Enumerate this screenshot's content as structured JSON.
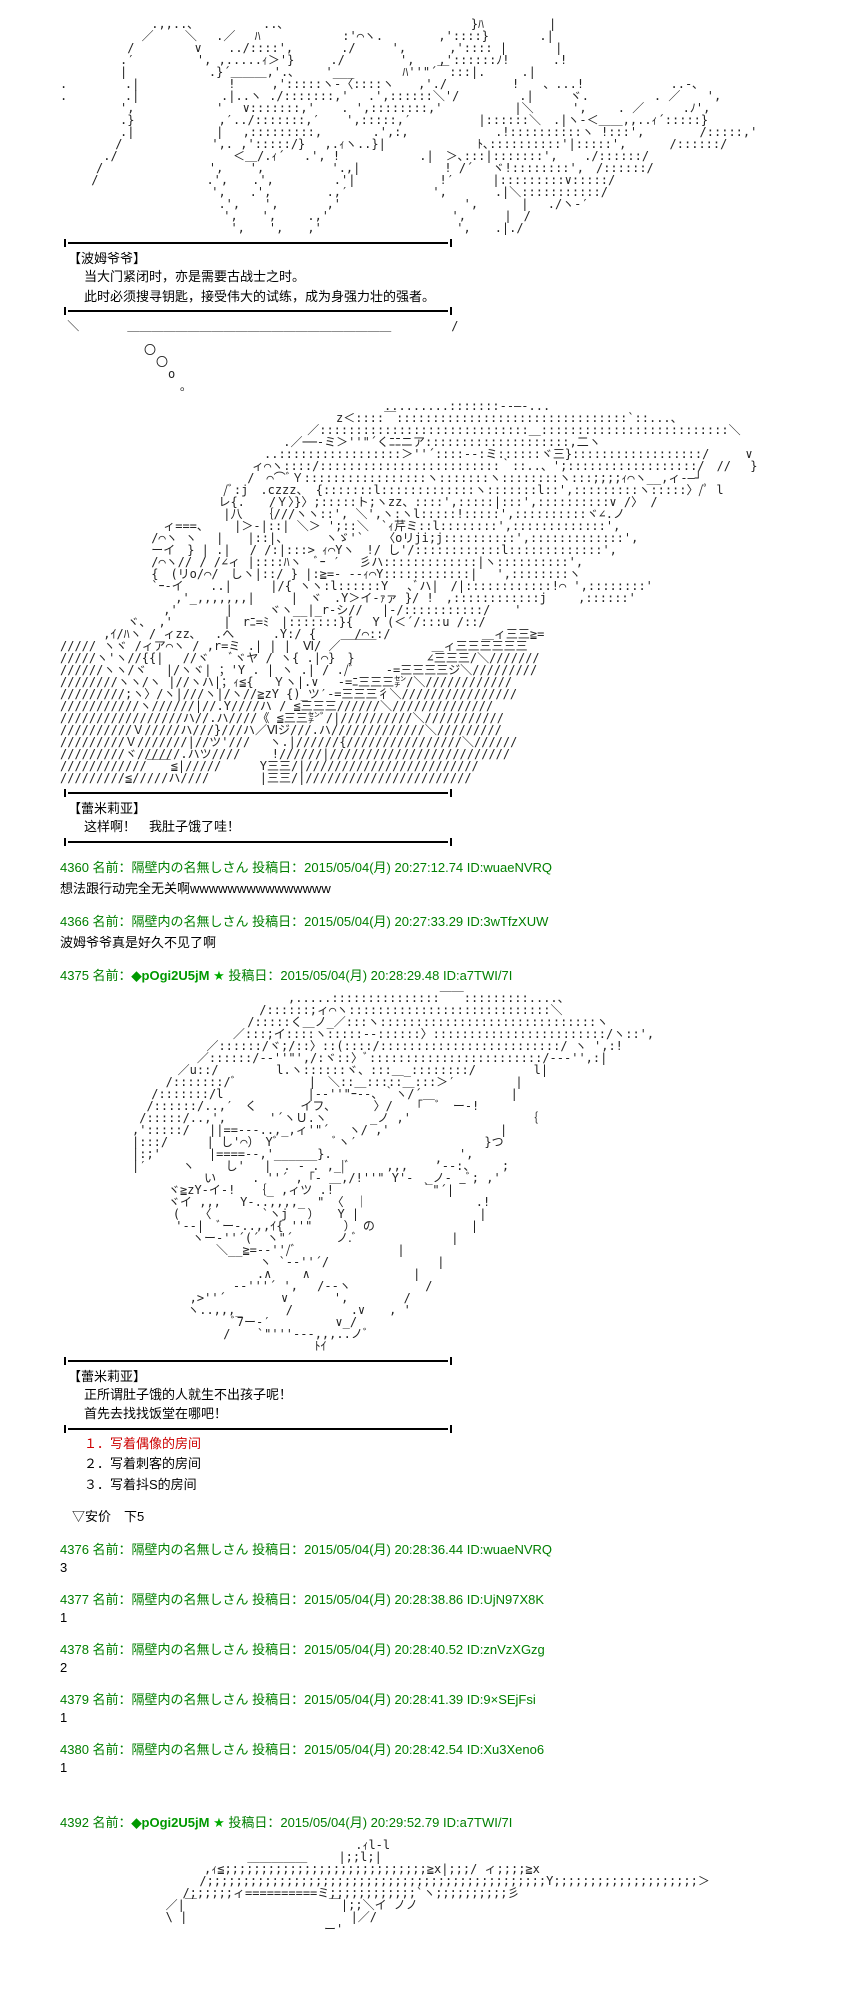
{
  "art1_lines": "　　　　　　　 .,,..､ 　 　 　　..､ 　 　 　 　 　　　　　　　　 }ﾊ 　 　 　 |\n　　　 　 　 ／　　 ＼　 .／　 ﾊ 　　 　 　　:'⌒ヽ.　　　　 ,'::::}　 　　 .|\n　　　　　 /　　　　　∨ 　 ../::::',　　　　./　　　',　　　 ,':::: |　　　　|\n　　　　　.′　 　　　 ', ,.....ｨ＞'}　　　./　　 　　',　　,'::::::ﾉ!　　　 .!\n　　　　　|　　　 　 　 .}´＿＿＿,'.､　　 '___　　　　ﾊ''\"´￣:::|.　　　.|\n.　 　 　 .|　　 　 　 　 !　　　,':::::ヽ-〈::::ヽ　　,'./ 　 　 　 !　　、...! 　　　　　　 ..-､\n.　 　 　 .|　　　 　 　 .|..ヽ ./:::::::,'　 .',::::::＼'/　　　　　.|　　　ヾ. 　 　 　 . ／ 　 ',\n　　　　　', 　 　　 　　'　 ∨:::::::,' 　 . ',::::::::,'　　　　　　|＼　 　 ',　　 . ／　 　 .ﾉ',\n　　　　　.} 　 　 　 　 ,′../:::::::,′ 　 ',:::::,′　　　　　 |::::::＼　.|ヽ-＜＿＿,,..ｨ´:::::}\n　　　　　.|　　　 　 　 |　 ,:::::::::, 　　　 .',:,　　　　 　　 .!::::::::::ヽ !:::',　　　　 /:::::,'\n　　　　 /　　 　 　 　 ',. ,':::::/}　 ,.ｨヽ..}|　　　　　　　 ﾄ､::::::::::'|:::::',　　　 /::::::/\n　　　 ./　 　 　 　 　 　 ＜＿/.ｨ´　 .', !　　　　　　 .|　＞､:::|:::::::', 　 ./::::::/\n　　　/　　　　 　　 　 ', 　 ', 　　　　　'.,|　　　　　　　! /´　 ヾ!::::::::',　/::::::/\n　　 /　　　　　　　　　.',　　.',　　　　　.'|　　　　　　　!′ 　　 |:::::::::∨:::::/\n　　　　　　　　　　　　 ',　　.',　　　　 .,′ 　 　 　 　 ',　　　　.|＼:::::::::::/\n　　　　　　　　　　 　　 .',　　',　　　　,' 　 　 　 　 　 　 ',　　　 |　 ./ヽ-′\n　　　　　　　　　　　　　 ',　　',　　 .,'　　　　　 　　　　 ', 　　 |　/\n　　　　　　　 　　　　　　 ',　　',　　,'　　　　　　 　　　　 ',　　.|./",
  "speaker1": "【波姆爷爷】",
  "dialogue1_line1": "当大门紧闭时，亦是需要古战士之时。",
  "dialogue1_line2": "此时必须搜寻钥匙，接受伟大的试练，成为身强力壮的强者。",
  "art_bubble": " ＼　　　　　　　　　　　　　　　　　　　　　　　　　　　　　　　/\n　　　　　 ￣￣￣￣￣￣￣￣￣￣￣￣￣￣￣￣￣￣￣￣￣￣\n　　　　　　　〇\n　　　　　　　　〇\n　　　　　　　　　o\n　　　　　　　　　　｡",
  "art2_lines": "　　　　　　　　　　　　　　　　　　　　　　　　　　　.........:::::::--―-...\n　　　　　　　　　　　　　　　　　　　　　　　z＜::::￣::::::::::::::::::::::::::::::::`::...、\n　　　　　　　　　　　　　　　　　　　　 ／:::::::::::::::::::::::::::::＿::::::::::::::::::::::::::＼\n　　　　　　　　　　　　　　　　　　 .／──‐ミ＞''\"´くﾆﾆニア::::::::::::::::::::,二ヽ\n　　　　　　　　　　　　　　　　　..:::::::::::::::::＞''´::::--:ミ::::::ヾ三}::::::::::::::::::/　　　∨\n　　　　　　　　　　　　　　　　ィ⌒ヽ::::/:::::::::::::::::::::::::｀::..、';::::::::::::::::::/　//　 }\n　　　　　　　　　　　　　 　　/　⌒⌒ﾞＹ:::::::::::::::::ヽ:::::::ヽ::::::::ヽ:::;;;;ｨ⌒ヽ__,ィ-―┘\n　　　　　　　　　　　　　 /ﾞ:j　.czzz、 {:::::::l:::::::::::::ヽ:::::::l::',:::::::::ヽ:::::〉/ﾟ l\n　　　　　　　　　　　 　 レ{.　　/Ｙ〉}〉;:::::ト;ヽzz、::::',:::::|:::',::::::::::∨ /〉 /\n　　　　　　　　　　　　　 |八　 ｛///ヽヽ::', ＼',ヽ:ヽl:::::!:::::',::::::::::ヾ∠.ノ\n　　　　　　　　 ィ===、　　 |＞-|::| ＼＞ ';::＼　`ｨ芹ミ::l::::::::',:::::::::::::',\n　　　　　　　 /⌒ヽ ヽ　 |　　|::|、　　　 ヽゞ'`　 〈oリji;j::::::::::',:::::::::::::',\n　　　　　　　 ーイ　} | .|　 / /:|:::> ｨ⌒Yヽ　!/ し'/::::::::::::l:::::::::::::',\n　　　　　　　 /⌒ヽ// / /∠ィ |::::ﾊヽ　ﾞｰ ′　 彡ハ:::::::::::::|ヽ::::::::::',\n　　　　　　　 {　(リo/⌒/　しヽ|::/ } |:≧=- --ｨ⌒Y::::::::::::|　 ',::::::::ヽ\n　　　　　 　　`ｰ-イ 　 ..|　 　 |/{ ヽヽ:l::::::Y　 ､ﾞハ|　/|::::::::::::!⌒ ',::::::::'\n　　　　　　　　 　,'_,,,,,,,|　　　|　ヾ　.Y＞イ-ｧァ }/ !　,::::::::::::j　 　,::::::'\n　　　　　　　　 ,'　　　　|　　　ヾヽ__|_r‐シ//　 |-/:::::::::::/　　'\n　　　　　 ヾ、 ,'　 　　 |　rﾆ=ﾐ　|:::::::}{　 Y (＜´/:::u /::/\n　　　 ,ｲ/ﾊヽ / ィzz､　 .へ　 　 .Y:/ {　 　 /⌒::/　　　　　　　 ＿ィ三三≧=\n///// ヽヾ /ィア⌒ヽ / ,r=ミ .| | |　Ⅵ/ ／￣￣￣　　　　 ＿ィ三三三三三三\n/////ヽ'ヽ//{{|　 //ヾ 　ﾞヾヤ / ヽ{ .|⌒}　}　　　　　　∠三三三/＼///////\n//////ヽヽ/ヾ　 |/ヽヾ| ；'Y . | ヽ .| / ./ﾞ 　　-=三三三三ジ＼/////////\n////////ヽヽ/ヽ |//ヽハ|；ｨ≦{　 Ｙヽ|.∨　 -=ﾆ三三三㌢/＼////////////\n/////////;ヽ〉/ヽ|///ヽ|/ヽ//≧zY {)_ツ′‐=三三三彳＼////////////////\n///////////ヽ//////|//.Y////ハ / ≦三三三//////＼//////////////\n/////////////////ハ//.ハ////《 ≦三三㌢ﾞ/|//////////＼///////////\n//////////Ｖ/////ハ///}///ハ／Ⅵジ///.ハ/////////////＼/////////\n/////////Ｖ///////|//ツ'///　 ヽ.|//////{////////////////＼//////\n/////////ヾ//////.ハツ////　　 !//////|/////////////////////////\n////////////￣￣≦|/////　 　 Y三三/|////////////////////////\n/////////≦/////ハ////　　 　 |三三/|///////////////////////",
  "speaker2": "【蕾米莉亚】",
  "dialogue2": "这样啊！　我肚子饿了哇！",
  "post1_head": "4360 名前：隔壁内の名無しさん 投稿日：2015/05/04(月) 20:27:12.74 ID:wuaeNVRQ",
  "post1_body": "想法跟行动完全无关啊wwwwwwwwwwwwwww",
  "post2_head": "4366 名前：隔壁内の名無しさん 投稿日：2015/05/04(月) 20:27:33.29 ID:3wTfzXUW",
  "post2_body": "波姆爷爷真是好久不见了啊",
  "post3_prefix": "4375 名前：",
  "post3_trip": "◆pOgi2U5jM",
  "post3_star": "★",
  "post3_suffix": " 投稿日：2015/05/04(月) 20:28:29.48 ID:a7TWI/7I",
  "art3_lines": "　　　　　　　　　　　　　　　　　　　,.....:::::::::::::::￣￣:::::::::....、\n　　　　　　　　　　　　　　　 　/::::::;ィ⌒ヽ::::::::::::::::::::::::::::＼\n　　　　　　　　　　　　　　　 /:::::く＿ノ_／:::ヽ::::::::::::::::::::::::::::::ヽ\n　　　　　　　　　 　 　 　 ／:::;イ::::ヽ:::::-‐::::::〉::::::::::::::::::::::::/ヽ::',\n　　　　　　　　　　 　 ／::::::/ヾ;/::〉::(::::/:::::::::::::::::::::::::/ ヽ ',:!\n　　　　　　 　 　 　 ／::::::/-‐''\"',/:ヾ::〉ﾞ::::::::::::::::::::::::/--‐'',:|\n　　　　　　 　 　 ／u::/　 　 　 l.ヽ::::::ヾ、:::＿_::::::::/　 　 　 l|\n　　　　　 　 　 /:::::::/ﾞ　　　　　　|　＼::＿:::::＿:::＞′　　　　　|\n　　　　　　　 /:::::::/l　　　　　　　|-‐''\"ｰ‐-、｀ヽ/´　　 　 　 　 |\n　　　　　 　 /::::::/..,′　く　　　 イフ､　　　 〉/　　｢￣ﾞ　ー-!\n　　　　　　 /:::::/..,',　　　 '´ヽＵ.ヽ　　　 _ノ ,'　 　 　 　 　 　 ｛\n　　　　　　,':::::/　 ||==‐--..,_,ィ'\"´　 ヽ/ ,'　 　　　　　　　 |\n　　　　　　|:::/　 　 | し'⌒）　Yﾞ　 　 　 ﾞヽ′　　 　 　 　 　 　 }つ\n　　　　　　|:;'　　　　|====‐-,'______}. 　　　　　　　　　　',\n　　　　　　|′　　　ヽ　　 し' 　|　. - . ,_|ﾞ　　　,,, 　 ’‐-:、 　 ;\n　　　　　 　 　 　 　 い　　　. ''´ ,「- ＿,/!''\" Y'-　_ノ- _ﾞ; ,'\n　　　　　　　　　ヾ≧zY-イ-!　 ｛_ ,ィツ .!　　　　　 　 ｀\"´|\n　　　　　　　　　ヾイ ,,, 　Y-..,,,,_　\" 〈　｜　　 　 　 　 　 .!\n　　　　 　 　 　 (　 〈　　 　 `ヽj　 ）　　Y |　 　　　 　 　 　 |\n　　　　　　　　　 '‐-|　ﾞー-..,,ｲ{ ''\"　　 ） の　　　　　　　　|\n　　　　　　　　　　　ヽー-''´(´ ヽ\"´　　　 ノ.ﾞ　　 　 　 　　|\n　　　　　　　　　　　　　＼__≧=‐‐''/ﾞ　 　 　 　 　　|\n　　　　　　　　 　 　 　 　 　 ヽ `‐-''´/ 　　 　 　 　 　|\n　　　　　　　　　　　 　 　 　 .∧　　 ∧ 　 　 　 　 　 |\n　　　　　　　　　 　 　 　 -‐'''´ ',　 /‐-ヽ　　　　 　 /\n　　　　　　 　 　 　,>''´　　　　 ∨ 　 　 ',　　　　 /\n　　　　　　　　　　 ヽ..,,,_　　　 /　 　 　 .∨　　, '\n　　　　　　 　 　 　 　 　 ﾞ7ー-′ 　 　 　 ∨_/\n　　　　　　　　　　　　　 / 　 `\"'''‐--,,,..ノﾞ\n　　　　　　　　　　　　　　　　　　　 　 ﾄｲ",
  "speaker3": "【蕾米莉亚】",
  "dialogue3_line1": "正所谓肚子饿的人就生不出孩子呢！",
  "dialogue3_line2": "首先去找找饭堂在哪吧！",
  "choice1": "１．写着偶像的房间",
  "choice2": "２．写着刺客的房间",
  "choice3": "３．写着抖S的房间",
  "anka_text": "▽安价　下5",
  "post4_head": "4376 名前：隔壁内の名無しさん 投稿日：2015/05/04(月) 20:28:36.44 ID:wuaeNVRQ",
  "post4_body": "3",
  "post5_head": "4377 名前：隔壁内の名無しさん 投稿日：2015/05/04(月) 20:28:38.86 ID:UjN97X8K",
  "post5_body": "1",
  "post6_head": "4378 名前：隔壁内の名無しさん 投稿日：2015/05/04(月) 20:28:40.52 ID:znVzXGzg",
  "post6_body": "2",
  "post7_head": "4379 名前：隔壁内の名無しさん 投稿日：2015/05/04(月) 20:28:41.39 ID:9×SEjFsi",
  "post7_body": "1",
  "post8_head": "4380 名前：隔壁内の名無しさん 投稿日：2015/05/04(月) 20:28:42.54 ID:Xu3Xeno6",
  "post8_body": "1",
  "post9_prefix": "4392 名前：",
  "post9_trip": "◆pOgi2U5jM",
  "post9_star": "★",
  "post9_suffix": " 投稿日：2015/05/04(月) 20:29:52.79 ID:a7TWI/7I",
  "art4_lines": "　　　　　　　　　　　　　　　　　　　　　　　　 .ｨl-l\n　　　　　　　　　　　　　　　 ＿＿＿＿＿　　 |;;l;|\n　　　　　　　　　　　　,ｨ≦;;;;;;;;;;;;;;;;;;;;;;;;;;;;≧x|;;;/ ィ;;;;≧x\n　　　 　 　 　 　 　 /;;;;;;;;;;;;;;;;;;;;;;;;;;;;;;;;;;;;;;;;;;;;;;;Y;;;;;;;;;;;;;;;;;;;;＞\n　　　　　　　　 　 /;;;;;;ィ==========ミ;;;;;;;;;;;;`ヽ;;;;;;;;;;彡\n　　　　　 　 　 ／|￣　　　　　　　　　　　￣|;;＼イ ノノ\n　　　　　 　 　 \\ |　　　　　　　　　　　　　 |／/\n　　　　　　　　　　　　　　　　　　　　　　ー'"
}
